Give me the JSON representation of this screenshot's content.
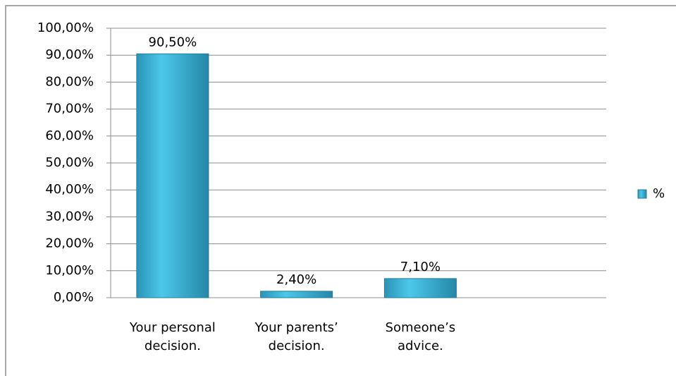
{
  "chart_data": {
    "type": "bar",
    "categories": [
      "Your personal decision.",
      "Your parents’ decision.",
      "Someone’s advice.",
      null
    ],
    "series": [
      {
        "name": "%",
        "color": "#31b6d9",
        "values": [
          90.5,
          2.4,
          7.1,
          null
        ],
        "value_labels": [
          "90,50%",
          "2,40%",
          "7,10%",
          null
        ]
      }
    ],
    "ylim": [
      0,
      100
    ],
    "yticks": [
      {
        "value": 0,
        "label": "0,00%"
      },
      {
        "value": 10,
        "label": "10,00%"
      },
      {
        "value": 20,
        "label": "20,00%"
      },
      {
        "value": 30,
        "label": "30,00%"
      },
      {
        "value": 40,
        "label": "40,00%"
      },
      {
        "value": 50,
        "label": "50,00%"
      },
      {
        "value": 60,
        "label": "60,00%"
      },
      {
        "value": 70,
        "label": "70,00%"
      },
      {
        "value": 80,
        "label": "80,00%"
      },
      {
        "value": 90,
        "label": "90,00%"
      },
      {
        "value": 100,
        "label": "100,00%"
      }
    ],
    "grid": true,
    "legend": "right"
  }
}
